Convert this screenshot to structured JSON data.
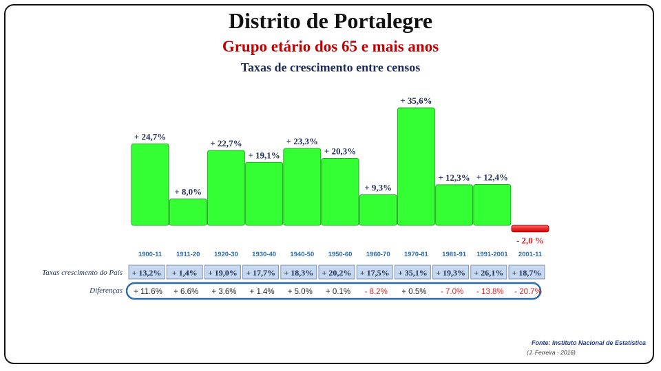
{
  "header": {
    "title": "Distrito de Portalegre",
    "subtitle": "Grupo etário dos 65 e mais anos",
    "subtitle2": "Taxas de crescimento entre censos"
  },
  "rows": {
    "country_label": "Taxas crescimento do País",
    "diff_label": "Diferenças"
  },
  "footer": {
    "source": "Fonte: Instituto Nacional de Estatística",
    "credit": "(J. Ferreira - 2016)"
  },
  "colors": {
    "positive_bar": "#33ff33",
    "negative_bar": "#ff2020",
    "label_dark": "#1f2d5a",
    "category_blue": "#2a6bb0",
    "negative_text": "#e02020",
    "country_box": "#c6d7f0",
    "diff_border": "#2a6bb0"
  },
  "chart_data": {
    "type": "bar",
    "title": "Distrito de Portalegre",
    "categories": [
      "1900-11",
      "1911-20",
      "1920-30",
      "1930-40",
      "1940-50",
      "1950-60",
      "1960-70",
      "1970-81",
      "1981-91",
      "1991-2001",
      "2001-11"
    ],
    "values": [
      24.7,
      8.0,
      22.7,
      19.1,
      23.3,
      20.3,
      9.3,
      35.6,
      12.3,
      12.4,
      -2.0
    ],
    "value_labels": [
      "+ 24,7%",
      "+ 8,0%",
      "+ 22,7%",
      "+ 19,1%",
      "+ 23,3%",
      "+ 20,3%",
      "+ 9,3%",
      "+ 35,6%",
      "+ 12,3%",
      "+ 12,4%",
      "- 2,0 %"
    ],
    "country_rates": [
      "+ 13,2%",
      "+ 1,4%",
      "+ 19,0%",
      "+ 17,7%",
      "+ 18,3%",
      "+ 20,2%",
      "+ 17,5%",
      "+ 35,1%",
      "+ 19,3%",
      "+ 26,1%",
      "+ 18,7%"
    ],
    "differences": [
      "+ 11.6%",
      "+ 6.6%",
      "+ 3.6%",
      "+ 1.4%",
      "+ 5.0%",
      "+ 0.1%",
      "- 8.2%",
      "+ 0.5%",
      "- 7.0%",
      "- 13.8%",
      "- 20.7%"
    ],
    "ylim": [
      -2.0,
      35.6
    ],
    "grid": false
  }
}
